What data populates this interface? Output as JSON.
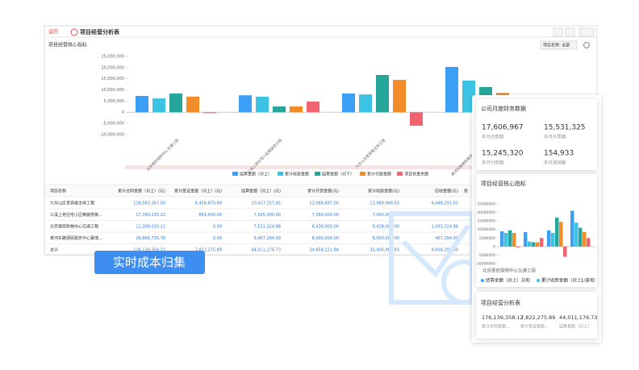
{
  "window": {
    "back": "返回",
    "title": "项目经营分析表"
  },
  "section": {
    "title": "项目经营核心指标",
    "filter": "项目名称: 全部"
  },
  "main_chart": {
    "type": "bar",
    "categories": [
      "北京惠民购物中心交通工程",
      "三溪上苑住宅小区精装修工程",
      "九华山庄贵宾楼主体工程",
      "黄河东路便民服务中心幕墙工程"
    ],
    "series": [
      {
        "name": "结算金额（对上）",
        "color": "#3a9ff5",
        "values": [
          7300000,
          7600000,
          8400000,
          20300000
        ]
      },
      {
        "name": "累计收款金额",
        "color": "#3cc3e3",
        "values": [
          6200000,
          7000000,
          8000000,
          14200000
        ]
      },
      {
        "name": "结算金额（对下）",
        "color": "#26a69a",
        "values": [
          8400000,
          2600000,
          16700000,
          11300000
        ]
      },
      {
        "name": "累计付款金额",
        "color": "#f28c28",
        "values": [
          7000000,
          2600000,
          14500000,
          8700000
        ]
      },
      {
        "name": "项目资金余额",
        "color": "#f06470",
        "values": [
          -400000,
          4800000,
          -6000000,
          null
        ]
      }
    ],
    "ylim": [
      -10000000,
      25000000
    ],
    "yticks": [
      {
        "value": 25000000,
        "label": "25,000,000"
      },
      {
        "value": 20000000,
        "label": "20,000,000"
      },
      {
        "value": 15000000,
        "label": "15,000,000"
      },
      {
        "value": 10000000,
        "label": "10,000,000"
      },
      {
        "value": 5000000,
        "label": "5,000,000"
      },
      0,
      {
        "value": -5000000,
        "label": "-5,000,000"
      },
      {
        "value": -10000000,
        "label": "-10,000,000"
      }
    ]
  },
  "table": {
    "columns": [
      "项目名称",
      "累计合同金额（对上）(元)",
      "累计签证金额（对上）(元)",
      "结算金额（对上）(元)",
      "累计开票金额(元)",
      "累计收款金额(元)",
      "应收金额(元)",
      "累"
    ],
    "rows": [
      [
        "九华山庄贵宾楼主体工程",
        "118,563,367.00",
        "6,458,875.89",
        "20,417,257.85",
        "12,068,897.00",
        "13,968,966.83",
        "6,448,291.02"
      ],
      [
        "三溪上苑住宅小区精装修第...",
        "17,399,235.22",
        "663,400.00",
        "7,595,300.00",
        "7,360,000.00",
        "7,000,000.00",
        "595,300.00"
      ],
      [
        "北京惠民购物中心交通工程",
        "11,308,020.12",
        "0.00",
        "7,531,324.88",
        "6,436,000.00",
        "6,438,000.00",
        "1,093,324.88"
      ],
      [
        "黄河东路便民服务中心幕墙...",
        "28,868,735.78",
        "0.00",
        "8,467,294.00",
        "8,000,000.00",
        "8,000,000.00",
        "467,294.00"
      ],
      [
        "总计",
        "176,139,358.12",
        "7,822,275.89",
        "44,011,176.73",
        "34,958,221.84",
        "35,406,966.83",
        "8,604,209.90"
      ]
    ]
  },
  "badge": "实时成本归集",
  "finance": {
    "title": "公司月度财务数据",
    "items": [
      {
        "value": "17,606,967",
        "label": "本月目款额"
      },
      {
        "value": "15,531,325",
        "label": "本月开票额"
      },
      {
        "value": "15,245,320",
        "label": "本月付款额"
      },
      {
        "value": "154,933",
        "label": "本月报销额"
      }
    ]
  },
  "mini_chart": {
    "type": "bar",
    "title": "项目经营核心指标",
    "category_label": "北京惠民购物中心交通工程",
    "page": "1/3",
    "series": [
      {
        "name": "结算金额（对上）总和",
        "color": "#3a9ff5",
        "values": [
          9000000,
          8500000,
          9500000,
          21000000
        ]
      },
      {
        "name": "累计收款金额（对上）总和",
        "color": "#3cc3e3",
        "values": [
          8000000,
          3000000,
          8000000,
          14000000
        ]
      },
      {
        "color": "#26a69a",
        "values": [
          9500000,
          2500000,
          17000000,
          11000000
        ]
      },
      {
        "color": "#f28c28",
        "values": [
          8000000,
          2500000,
          14500000,
          8500000
        ]
      },
      {
        "color": "#f06470",
        "values": [
          -500000,
          5000000,
          -6000000,
          5000000
        ]
      }
    ],
    "ylim": [
      -10000000,
      25000000
    ],
    "yticks": [
      25000000,
      20000000,
      15000000,
      10000000,
      5000000,
      0,
      -5000000,
      -10000000
    ]
  },
  "analysis": {
    "title": "项目经营分析表",
    "items": [
      {
        "value": "176,139,358.12",
        "label": "累计合同金额..."
      },
      {
        "value": "7,822,275.89",
        "label": "累计签证金额..."
      },
      {
        "value": "44,011,176.73",
        "label": "结算金额（对上）"
      }
    ]
  }
}
